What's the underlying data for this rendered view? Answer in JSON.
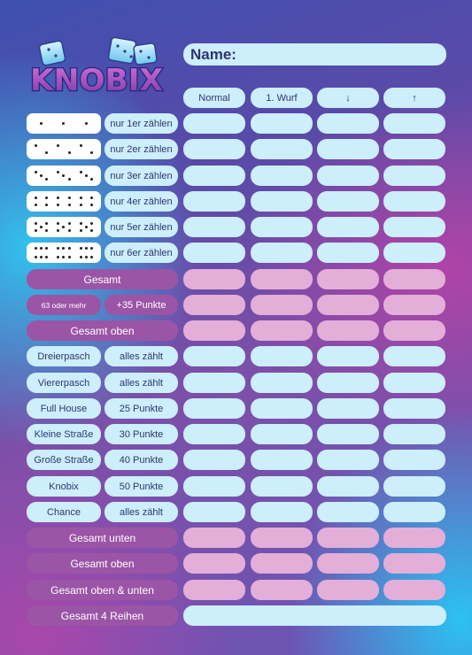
{
  "logo": {
    "text": "KNOBIX"
  },
  "name_label": "Name:",
  "columns": [
    "Normal",
    "1. Wurf",
    "↓",
    "↑"
  ],
  "dice_rows": [
    {
      "pips": 1,
      "label": "nur 1er zählen"
    },
    {
      "pips": 2,
      "label": "nur 2er zählen"
    },
    {
      "pips": 3,
      "label": "nur 3er zählen"
    },
    {
      "pips": 4,
      "label": "nur 4er zählen"
    },
    {
      "pips": 5,
      "label": "nur 5er zählen"
    },
    {
      "pips": 6,
      "label": "nur 6er zählen"
    }
  ],
  "upper_summary": {
    "gesamt": "Gesamt",
    "bonus_condition": "63 oder mehr",
    "bonus_value": "+35 Punkte",
    "gesamt_oben": "Gesamt oben"
  },
  "lower_rows": [
    {
      "name": "Dreierpasch",
      "value": "alles zählt"
    },
    {
      "name": "Viererpasch",
      "value": "alles zählt"
    },
    {
      "name": "Full House",
      "value": "25 Punkte"
    },
    {
      "name": "Kleine Straße",
      "value": "30 Punkte"
    },
    {
      "name": "Große Straße",
      "value": "40 Punkte"
    },
    {
      "name": "Knobix",
      "value": "50 Punkte"
    },
    {
      "name": "Chance",
      "value": "alles zählt"
    }
  ],
  "totals": [
    "Gesamt unten",
    "Gesamt oben",
    "Gesamt oben & unten"
  ],
  "grand_total": "Gesamt 4 Reihen",
  "colors": {
    "cell_blue": "#cdeefb",
    "cell_pink": "#e3aed8",
    "label_purple": "#9b55a6",
    "text_navy": "#2e3570"
  }
}
